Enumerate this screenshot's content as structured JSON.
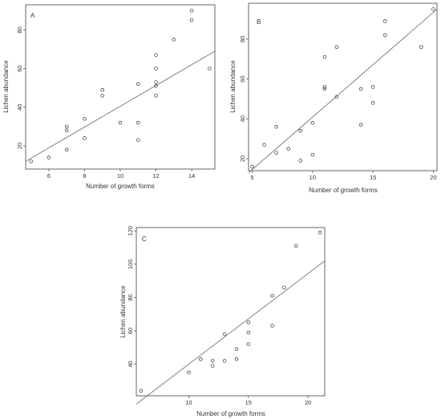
{
  "chart_data": [
    {
      "type": "scatter",
      "panel_label": "A",
      "xlabel": "Number of growth forms",
      "ylabel": "Lichen abundance",
      "xlim": [
        4.7,
        15.3
      ],
      "ylim": [
        8,
        93
      ],
      "xticks": [
        6,
        8,
        10,
        12,
        14
      ],
      "yticks": [
        20,
        40,
        60,
        80
      ],
      "points": [
        {
          "x": 5,
          "y": 12
        },
        {
          "x": 6,
          "y": 14
        },
        {
          "x": 7,
          "y": 18
        },
        {
          "x": 7,
          "y": 28
        },
        {
          "x": 7,
          "y": 30
        },
        {
          "x": 8,
          "y": 24
        },
        {
          "x": 8,
          "y": 34
        },
        {
          "x": 9,
          "y": 46
        },
        {
          "x": 9,
          "y": 49
        },
        {
          "x": 10,
          "y": 32
        },
        {
          "x": 11,
          "y": 23
        },
        {
          "x": 11,
          "y": 32
        },
        {
          "x": 11,
          "y": 52
        },
        {
          "x": 12,
          "y": 46
        },
        {
          "x": 12,
          "y": 51
        },
        {
          "x": 12,
          "y": 53
        },
        {
          "x": 12,
          "y": 60
        },
        {
          "x": 12,
          "y": 67
        },
        {
          "x": 13,
          "y": 75
        },
        {
          "x": 14,
          "y": 85
        },
        {
          "x": 14,
          "y": 90
        },
        {
          "x": 15,
          "y": 60
        }
      ],
      "fit_line": {
        "x": [
          4.7,
          15.3
        ],
        "y": [
          12,
          69
        ]
      },
      "grid": false,
      "legend": "none"
    },
    {
      "type": "scatter",
      "panel_label": "B",
      "xlabel": "Number of growth forms",
      "ylabel": "Lichen abundance",
      "xlim": [
        4.7,
        20.3
      ],
      "ylim": [
        14,
        98
      ],
      "xticks": [
        5,
        10,
        15,
        20
      ],
      "yticks": [
        20,
        40,
        60,
        80
      ],
      "points": [
        {
          "x": 5,
          "y": 16
        },
        {
          "x": 6,
          "y": 27
        },
        {
          "x": 7,
          "y": 23
        },
        {
          "x": 7,
          "y": 36
        },
        {
          "x": 8,
          "y": 25
        },
        {
          "x": 9,
          "y": 19
        },
        {
          "x": 9,
          "y": 34
        },
        {
          "x": 10,
          "y": 22
        },
        {
          "x": 10,
          "y": 38
        },
        {
          "x": 11,
          "y": 55
        },
        {
          "x": 11,
          "y": 56
        },
        {
          "x": 11,
          "y": 71
        },
        {
          "x": 12,
          "y": 51
        },
        {
          "x": 12,
          "y": 76
        },
        {
          "x": 14,
          "y": 37
        },
        {
          "x": 14,
          "y": 55
        },
        {
          "x": 15,
          "y": 48
        },
        {
          "x": 15,
          "y": 56
        },
        {
          "x": 16,
          "y": 82
        },
        {
          "x": 16,
          "y": 89
        },
        {
          "x": 19,
          "y": 76
        },
        {
          "x": 20,
          "y": 95
        }
      ],
      "fit_line": {
        "x": [
          4.7,
          20.3
        ],
        "y": [
          13,
          95
        ]
      },
      "grid": false,
      "legend": "none"
    },
    {
      "type": "scatter",
      "panel_label": "C",
      "xlabel": "Number of growth forms",
      "ylabel": "Lichen abundance",
      "xlim": [
        5.6,
        21.4
      ],
      "ylim": [
        21,
        122
      ],
      "xticks": [
        10,
        15,
        20
      ],
      "yticks": [
        40,
        60,
        80,
        100,
        120
      ],
      "points": [
        {
          "x": 6,
          "y": 24
        },
        {
          "x": 10,
          "y": 35
        },
        {
          "x": 11,
          "y": 43
        },
        {
          "x": 12,
          "y": 39
        },
        {
          "x": 12,
          "y": 42
        },
        {
          "x": 13,
          "y": 42
        },
        {
          "x": 13,
          "y": 58
        },
        {
          "x": 14,
          "y": 43
        },
        {
          "x": 14,
          "y": 49
        },
        {
          "x": 15,
          "y": 52
        },
        {
          "x": 15,
          "y": 59
        },
        {
          "x": 15,
          "y": 65
        },
        {
          "x": 17,
          "y": 63
        },
        {
          "x": 17,
          "y": 81
        },
        {
          "x": 18,
          "y": 86
        },
        {
          "x": 19,
          "y": 111
        },
        {
          "x": 21,
          "y": 119
        }
      ],
      "fit_line": {
        "x": [
          5.6,
          21.4
        ],
        "y": [
          16,
          102
        ]
      },
      "grid": false,
      "legend": "none"
    }
  ]
}
